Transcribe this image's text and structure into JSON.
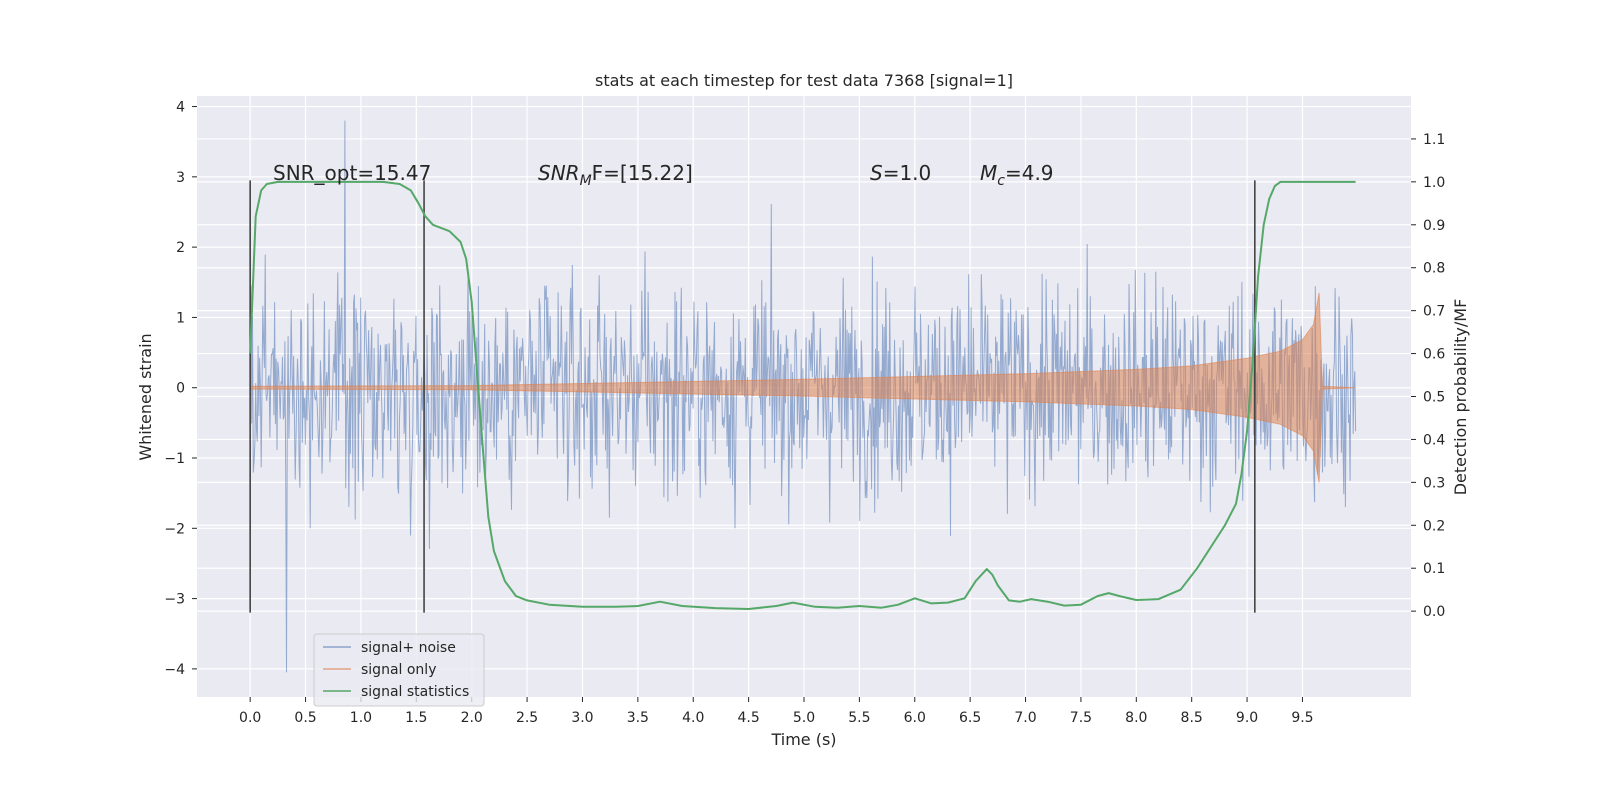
{
  "chart_data": {
    "type": "line",
    "title": "stats at each timestep for test data 7368 [signal=1]",
    "xlabel": "Time (s)",
    "ylabel_left": "Whitened strain",
    "ylabel_right": "Detection probability/MF",
    "xlim": [
      -0.48,
      10.48
    ],
    "ylim_left": [
      -4.4,
      4.15
    ],
    "ylim_right": [
      -0.2,
      1.2
    ],
    "x_ticks": [
      0.0,
      0.5,
      1.0,
      1.5,
      2.0,
      2.5,
      3.0,
      3.5,
      4.0,
      4.5,
      5.0,
      5.5,
      6.0,
      6.5,
      7.0,
      7.5,
      8.0,
      8.5,
      9.0,
      9.5
    ],
    "x_tick_labels": [
      "0.0",
      "0.5",
      "1.0",
      "1.5",
      "2.0",
      "2.5",
      "3.0",
      "3.5",
      "4.0",
      "4.5",
      "5.0",
      "5.5",
      "6.0",
      "6.5",
      "7.0",
      "7.5",
      "8.0",
      "8.5",
      "9.0",
      "9.5"
    ],
    "y_left_ticks": [
      -4,
      -3,
      -2,
      -1,
      0,
      1,
      2,
      3,
      4
    ],
    "y_left_tick_labels": [
      "−4",
      "−3",
      "−2",
      "−1",
      "0",
      "1",
      "2",
      "3",
      "4"
    ],
    "y_right_ticks": [
      0.0,
      0.1,
      0.2,
      0.3,
      0.4,
      0.5,
      0.6,
      0.7,
      0.8,
      0.9,
      1.0,
      1.1
    ],
    "y_right_tick_labels": [
      "0.0",
      "0.1",
      "0.2",
      "0.3",
      "0.4",
      "0.5",
      "0.6",
      "0.7",
      "0.8",
      "0.9",
      "1.0",
      "1.1"
    ],
    "grid": true,
    "legend_position": "lower-left",
    "annotations": {
      "snr_opt": "SNR_opt=15.47",
      "snr_mf_prefix": "SNR",
      "snr_mf_sub": "M",
      "snr_mf_suffix": "F=[15.22]",
      "s_prefix": "S",
      "s_suffix": "=1.0",
      "mc_prefix": "M",
      "mc_sub": "c",
      "mc_suffix": "=4.9"
    },
    "vertical_markers_x": [
      0.0,
      1.57,
      9.07
    ],
    "series": [
      {
        "name": "signal+ noise",
        "color": "#4c72b0",
        "axis": "left",
        "x_range": [
          0.0,
          9.98
        ],
        "typical_range": [
          -1.3,
          1.3
        ],
        "peak_high": 3.8,
        "peak_low": -4.05
      },
      {
        "name": "signal only",
        "color": "#dd8452",
        "axis": "left",
        "merger_time": 9.65,
        "envelope": [
          {
            "x": 0.0,
            "y": 0.02
          },
          {
            "x": 2.0,
            "y": 0.03
          },
          {
            "x": 3.0,
            "y": 0.06
          },
          {
            "x": 4.0,
            "y": 0.09
          },
          {
            "x": 5.0,
            "y": 0.12
          },
          {
            "x": 6.0,
            "y": 0.16
          },
          {
            "x": 7.0,
            "y": 0.2
          },
          {
            "x": 8.0,
            "y": 0.26
          },
          {
            "x": 8.5,
            "y": 0.31
          },
          {
            "x": 9.0,
            "y": 0.42
          },
          {
            "x": 9.3,
            "y": 0.52
          },
          {
            "x": 9.5,
            "y": 0.68
          },
          {
            "x": 9.6,
            "y": 0.9
          },
          {
            "x": 9.65,
            "y": 1.35
          },
          {
            "x": 9.68,
            "y": 0.02
          },
          {
            "x": 9.98,
            "y": 0.0
          }
        ]
      },
      {
        "name": "signal statistics",
        "color": "#55a868",
        "axis": "right",
        "x": [
          0.0,
          0.05,
          0.1,
          0.15,
          0.25,
          0.4,
          0.6,
          0.8,
          1.0,
          1.2,
          1.35,
          1.45,
          1.52,
          1.58,
          1.65,
          1.75,
          1.8,
          1.9,
          1.95,
          2.0,
          2.05,
          2.1,
          2.15,
          2.2,
          2.3,
          2.4,
          2.5,
          2.7,
          3.0,
          3.3,
          3.5,
          3.7,
          3.9,
          4.2,
          4.5,
          4.75,
          4.9,
          5.1,
          5.3,
          5.5,
          5.7,
          5.85,
          6.0,
          6.15,
          6.3,
          6.45,
          6.55,
          6.65,
          6.7,
          6.75,
          6.85,
          6.95,
          7.05,
          7.2,
          7.35,
          7.5,
          7.65,
          7.75,
          7.85,
          8.0,
          8.2,
          8.4,
          8.55,
          8.7,
          8.8,
          8.9,
          8.95,
          9.0,
          9.05,
          9.1,
          9.15,
          9.2,
          9.25,
          9.3,
          9.4,
          9.6,
          9.8,
          9.98
        ],
        "y": [
          0.6,
          0.92,
          0.98,
          0.995,
          1.0,
          1.0,
          1.0,
          1.0,
          1.0,
          1.0,
          0.995,
          0.98,
          0.95,
          0.92,
          0.9,
          0.89,
          0.885,
          0.86,
          0.82,
          0.72,
          0.55,
          0.38,
          0.22,
          0.14,
          0.07,
          0.035,
          0.025,
          0.015,
          0.01,
          0.01,
          0.012,
          0.022,
          0.012,
          0.007,
          0.005,
          0.012,
          0.02,
          0.01,
          0.008,
          0.012,
          0.008,
          0.015,
          0.03,
          0.018,
          0.02,
          0.03,
          0.07,
          0.098,
          0.085,
          0.06,
          0.025,
          0.022,
          0.028,
          0.022,
          0.013,
          0.015,
          0.035,
          0.042,
          0.035,
          0.026,
          0.028,
          0.05,
          0.1,
          0.16,
          0.2,
          0.25,
          0.32,
          0.42,
          0.58,
          0.78,
          0.9,
          0.96,
          0.99,
          1.0,
          1.0,
          1.0,
          1.0,
          1.0
        ]
      }
    ]
  }
}
